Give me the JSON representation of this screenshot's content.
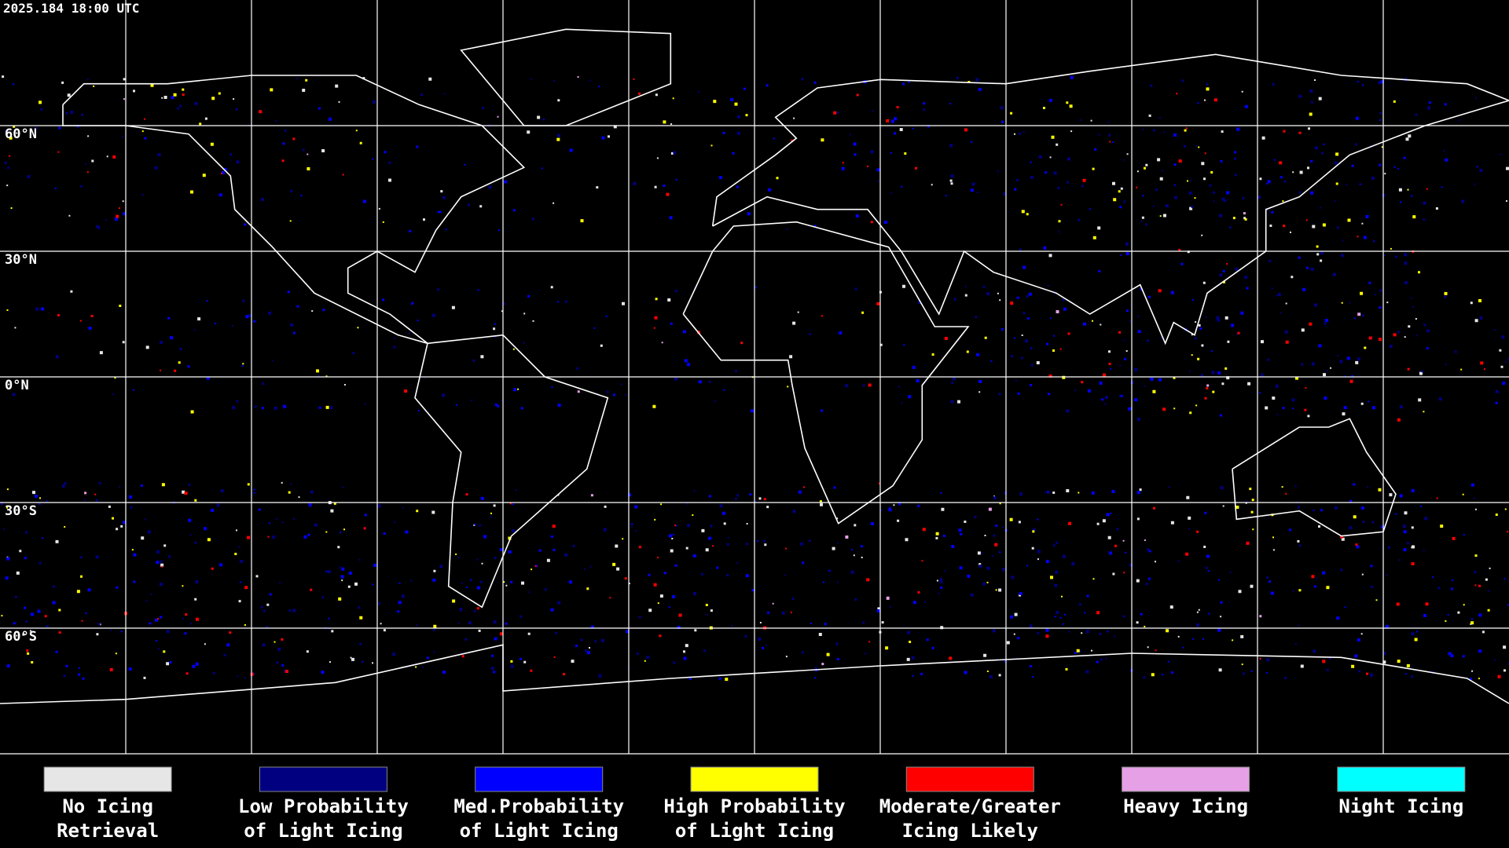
{
  "header": {
    "timestamp": "2025.184 18:00 UTC"
  },
  "map": {
    "lat_labels": [
      "60°N",
      "30°N",
      "0°N",
      "30°S",
      "60°S"
    ]
  },
  "legend": {
    "items": [
      {
        "label": [
          "No Icing",
          "Retrieval"
        ],
        "color": "#e6e6e6"
      },
      {
        "label": [
          "Low Probability",
          "of Light Icing"
        ],
        "color": "#000080"
      },
      {
        "label": [
          "Med.Probability",
          "of Light Icing"
        ],
        "color": "#0000ff"
      },
      {
        "label": [
          "High Probability",
          "of Light Icing"
        ],
        "color": "#ffff00"
      },
      {
        "label": [
          "Moderate/Greater",
          "Icing Likely"
        ],
        "color": "#ff0000"
      },
      {
        "label": [
          "Heavy Icing"
        ],
        "color": "#e6a0e6"
      },
      {
        "label": [
          "Night Icing"
        ],
        "color": "#00ffff"
      }
    ]
  }
}
